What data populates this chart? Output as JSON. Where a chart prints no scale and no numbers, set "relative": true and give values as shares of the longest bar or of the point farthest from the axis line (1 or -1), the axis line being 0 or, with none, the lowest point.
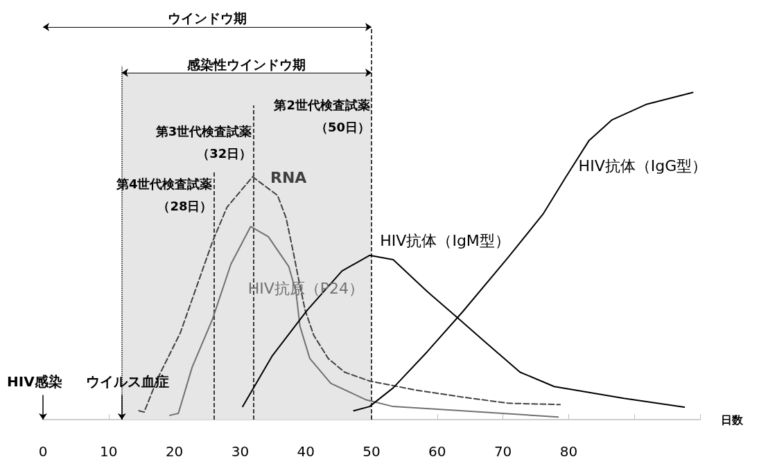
{
  "chart_data": {
    "type": "line",
    "relative": true,
    "xlabel": "日数",
    "xlim": [
      0,
      100
    ],
    "xticks": [
      0,
      10,
      20,
      30,
      40,
      50,
      60,
      70,
      80,
      {
        "value": 90,
        "label": null
      },
      {
        "value": 100,
        "label": null
      }
    ],
    "grid": false,
    "legend": false,
    "marker": "none",
    "series": [
      {
        "name": "RNA",
        "color": "#404040",
        "line_style": "dashed",
        "x": [
          14.6,
          15.4,
          17.4,
          20.9,
          25.8,
          28.0,
          31.9,
          35.7,
          37.0,
          38.1,
          38.8,
          39.9,
          41.2,
          43.4,
          45.9,
          49.7,
          56.8,
          63.8,
          70.8,
          78.7
        ],
        "values": [
          0.027,
          0.023,
          0.124,
          0.265,
          0.544,
          0.649,
          0.742,
          0.685,
          0.616,
          0.511,
          0.439,
          0.334,
          0.258,
          0.187,
          0.145,
          0.118,
          0.09,
          0.069,
          0.05,
          0.046
        ]
      },
      {
        "name": "HIV抗原（P24）",
        "color": "#707070",
        "line_style": "solid",
        "x": [
          19.3,
          20.6,
          22.7,
          25.8,
          28.6,
          31.6,
          34.3,
          37.4,
          38.5,
          39.1,
          40.6,
          43.8,
          49.1,
          53.3,
          63.8,
          78.4
        ],
        "values": [
          0.013,
          0.019,
          0.16,
          0.307,
          0.475,
          0.59,
          0.559,
          0.468,
          0.391,
          0.286,
          0.187,
          0.111,
          0.061,
          0.04,
          0.027,
          0.008
        ]
      },
      {
        "name": "HIV抗体（IgM型）",
        "color": "#000000",
        "line_style": "solid",
        "x": [
          30.4,
          34.9,
          40.2,
          45.5,
          49.7,
          53.3,
          58.5,
          63.1,
          67.3,
          72.6,
          77.8,
          88.4,
          97.6
        ],
        "values": [
          0.04,
          0.195,
          0.334,
          0.454,
          0.502,
          0.489,
          0.391,
          0.311,
          0.237,
          0.145,
          0.101,
          0.065,
          0.038
        ]
      },
      {
        "name": "HIV抗体（IgG型）",
        "color": "#000000",
        "line_style": "solid",
        "x": [
          47.3,
          49.7,
          53.3,
          58.5,
          63.8,
          70.8,
          76.1,
          79.6,
          83.1,
          86.6,
          91.9,
          98.9
        ],
        "values": [
          0.027,
          0.04,
          0.097,
          0.208,
          0.328,
          0.496,
          0.628,
          0.742,
          0.853,
          0.916,
          0.964,
          1
        ]
      }
    ],
    "ref_lines": [
      {
        "axis": "x",
        "value": 12,
        "label": null,
        "line_style": "dotted",
        "color": "#000000"
      },
      {
        "axis": "x",
        "value": 26,
        "label": "第4世代検査試薬（28日）",
        "line_style": "dashed",
        "color": "#000000"
      },
      {
        "axis": "x",
        "value": 32,
        "label": "第3世代検査試薬（32日）",
        "line_style": "dashed",
        "color": "#000000"
      },
      {
        "axis": "x",
        "value": 50,
        "label": "第2世代検査試薬（50日）",
        "line_style": "dashed",
        "color": "#000000"
      }
    ],
    "bands": [
      {
        "axis": "x",
        "from": 12,
        "to": 50,
        "label": "感染性ウインドウ期",
        "color": "#e6e6e6"
      }
    ],
    "annotations": [
      "ウインドウ期",
      "HIV感染",
      "ウイルス血症"
    ]
  }
}
